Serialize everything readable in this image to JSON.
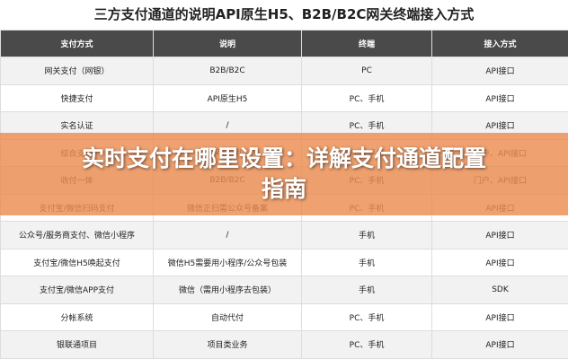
{
  "header": {
    "title": "三方支付通道的说明API原生H5、B2B/B2C网关终端接入方式"
  },
  "table": {
    "headers": [
      "支付方式",
      "说明",
      "终端",
      "接入方式"
    ],
    "rows": [
      [
        "网关支付（网银）",
        "B2B/B2C",
        "PC",
        "API接口"
      ],
      [
        "快捷支付",
        "API原生H5",
        "PC、手机",
        "API接口"
      ],
      [
        "实名认证",
        "/",
        "PC、手机",
        "API接口"
      ],
      [
        "综合支付",
        "B2B/B2C",
        "PC、手机",
        "门户、API接口"
      ],
      [
        "收付一体",
        "B2B/B2C",
        "PC、手机",
        "门户、API接口"
      ],
      [
        "支付宝/微信扫码支付",
        "微信正扫需公众号备案",
        "PC、手机",
        "API接口"
      ],
      [
        "公众号/服务商支付、微信小程序",
        "/",
        "手机",
        "API接口"
      ],
      [
        "支付宝/微信H5唤起支付",
        "微信H5需要用小程序/公众号包装",
        "手机",
        "API接口"
      ],
      [
        "支付宝/微信APP支付",
        "微信（需用小程序去包装）",
        "手机",
        "SDK"
      ],
      [
        "分帐系统",
        "自动代付",
        "PC、手机",
        "API接口"
      ],
      [
        "银联通项目",
        "项目类业务",
        "PC、手机",
        "API接口"
      ]
    ]
  },
  "banner": {
    "lines": [
      "实时支付在哪里设置：详解支付通道配置",
      "指南"
    ]
  }
}
